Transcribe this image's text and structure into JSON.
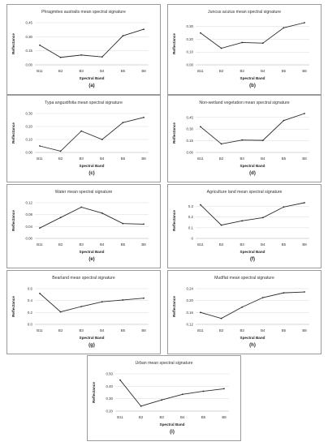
{
  "chart_data": [
    {
      "id": "a",
      "type": "line",
      "title": "Phragmites australis mean spectral signature",
      "categories": [
        "B11",
        "B2",
        "B3",
        "B4",
        "B5",
        "B8"
      ],
      "values": [
        0.21,
        0.08,
        0.105,
        0.085,
        0.31,
        0.38
      ],
      "ylim": [
        0,
        0.45
      ],
      "yticks": [
        0.0,
        0.15,
        0.3,
        0.45
      ],
      "ytick_labels": [
        "0.00",
        "0.15",
        "0.30",
        "0.45"
      ],
      "xlabel": "Spectral Band",
      "ylabel": "Reflectance",
      "caption": "(a)"
    },
    {
      "id": "b",
      "type": "line",
      "title": "Juncus acutus mean spectral signature",
      "categories": [
        "B11",
        "B2",
        "B3",
        "B4",
        "B5",
        "B8"
      ],
      "values": [
        0.25,
        0.13,
        0.175,
        0.17,
        0.29,
        0.33
      ],
      "ylim": [
        0,
        0.3
      ],
      "yticks": [
        0.0,
        0.1,
        0.2,
        0.3
      ],
      "ytick_labels": [
        "0.00",
        "0.10",
        "0.20",
        "0.30"
      ],
      "xlabel": "Spectral Band",
      "ylabel": "Reflectance",
      "caption": "(b)"
    },
    {
      "id": "c",
      "type": "line",
      "title": "Typa angustifolia mean spectral signature",
      "categories": [
        "B11",
        "B2",
        "B3",
        "B4",
        "B5",
        "B8"
      ],
      "values": [
        0.05,
        0.01,
        0.165,
        0.1,
        0.23,
        0.27
      ],
      "ylim": [
        0,
        0.3
      ],
      "yticks": [
        0.0,
        0.1,
        0.2,
        0.3
      ],
      "ytick_labels": [
        "0.00",
        "0.10",
        "0.20",
        "0.30"
      ],
      "xlabel": "Spectral Band",
      "ylabel": "Reflectance",
      "caption": "(c)"
    },
    {
      "id": "d",
      "type": "line",
      "title": "Non-wetland vegetation mean spectral signature",
      "categories": [
        "B11",
        "B2",
        "B3",
        "B4",
        "B5",
        "B8"
      ],
      "values": [
        0.33,
        0.11,
        0.16,
        0.155,
        0.41,
        0.5
      ],
      "ylim": [
        0,
        0.45
      ],
      "yticks": [
        0.0,
        0.15,
        0.3,
        0.45
      ],
      "ytick_labels": [
        "0.00",
        "0.15",
        "0.30",
        "0.45"
      ],
      "xlabel": "Spectral Band",
      "ylabel": "Reflectance",
      "caption": "(d)"
    },
    {
      "id": "e",
      "type": "line",
      "title": "Water mean spectral signature",
      "categories": [
        "B11",
        "B2",
        "B3",
        "B4",
        "B5",
        "B8"
      ],
      "values": [
        0.035,
        0.07,
        0.105,
        0.085,
        0.05,
        0.048
      ],
      "ylim": [
        0,
        0.12
      ],
      "yticks": [
        0.0,
        0.04,
        0.08,
        0.12
      ],
      "ytick_labels": [
        "0.00",
        "0.04",
        "0.08",
        "0.12"
      ],
      "xlabel": "Spectral Band",
      "ylabel": "Reflectance",
      "caption": "(e)"
    },
    {
      "id": "f",
      "type": "line",
      "title": "Agriculture land mean spectral signature",
      "categories": [
        "B11",
        "B2",
        "B3",
        "B4",
        "B5",
        "B8"
      ],
      "values": [
        0.315,
        0.125,
        0.165,
        0.195,
        0.295,
        0.335
      ],
      "ylim": [
        0,
        0.3
      ],
      "yticks": [
        0,
        0.1,
        0.2,
        0.3
      ],
      "ytick_labels": [
        "0",
        "0.1",
        "0.2",
        "0.3"
      ],
      "xlabel": "Spectral Band",
      "ylabel": "Reflectance",
      "caption": "(f)"
    },
    {
      "id": "g",
      "type": "line",
      "title": "Bearland mean spectral signature",
      "categories": [
        "B11",
        "B2",
        "B3",
        "B4",
        "B5",
        "B8"
      ],
      "values": [
        0.52,
        0.21,
        0.3,
        0.38,
        0.41,
        0.44
      ],
      "ylim": [
        0,
        0.6
      ],
      "yticks": [
        0.0,
        0.2,
        0.4,
        0.6
      ],
      "ytick_labels": [
        "0.0",
        "0.2",
        "0.4",
        "0.6"
      ],
      "xlabel": "Spectral Band",
      "ylabel": "Reflectance",
      "caption": "(g)"
    },
    {
      "id": "h",
      "type": "line",
      "title": "Mudflat mean spectral signature",
      "categories": [
        "B11",
        "B2",
        "B3",
        "B4",
        "B5",
        "B8"
      ],
      "values": [
        0.16,
        0.14,
        0.178,
        0.21,
        0.226,
        0.229
      ],
      "ylim": [
        0.12,
        0.24
      ],
      "yticks": [
        0.12,
        0.16,
        0.2,
        0.24
      ],
      "ytick_labels": [
        "0.12",
        "0.16",
        "0.20",
        "0.24"
      ],
      "xlabel": "Spectral Band",
      "ylabel": "Reflectance",
      "caption": "(h)"
    },
    {
      "id": "i",
      "type": "line",
      "title": "Urban mean spectral signature",
      "categories": [
        "B11",
        "B2",
        "B3",
        "B4",
        "B5",
        "B8"
      ],
      "values": [
        0.45,
        0.24,
        0.29,
        0.335,
        0.36,
        0.38
      ],
      "ylim": [
        0.2,
        0.5
      ],
      "yticks": [
        0.2,
        0.3,
        0.4,
        0.5
      ],
      "ytick_labels": [
        "0.20",
        "0.30",
        "0.40",
        "0.50"
      ],
      "xlabel": "Spectral Band",
      "ylabel": "Reflectance",
      "caption": "(i)"
    }
  ]
}
